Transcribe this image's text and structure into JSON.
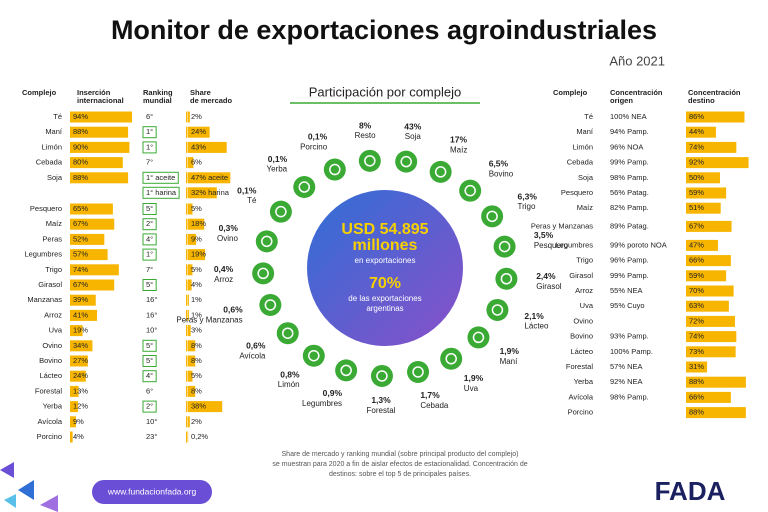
{
  "header": {
    "title": "Monitor de exportaciones agroindustriales",
    "year": "Año 2021"
  },
  "left": {
    "headers": {
      "complejo": [
        "Complejo"
      ],
      "insercion": [
        "Inserción",
        "internacional"
      ],
      "ranking": [
        "Ranking",
        "mundial"
      ],
      "share": [
        "Share",
        "de mercado"
      ]
    },
    "rows": [
      {
        "name": "Té",
        "insercion": 94,
        "insercion_label": "94%",
        "ranking": "6°",
        "share": 2,
        "share_label": "2%"
      },
      {
        "name": "Maní",
        "insercion": 88,
        "insercion_label": "88%",
        "ranking": "1°",
        "highlight": true,
        "share": 24,
        "share_label": "24%"
      },
      {
        "name": "Limón",
        "insercion": 90,
        "insercion_label": "90%",
        "ranking": "1°",
        "highlight": true,
        "share": 43,
        "share_label": "43%"
      },
      {
        "name": "Cebada",
        "insercion": 80,
        "insercion_label": "80%",
        "ranking": "7°",
        "share": 6,
        "share_label": "6%"
      },
      {
        "name": "Soja",
        "insercion": 88,
        "insercion_label": "88%",
        "ranking": "1° aceite",
        "highlight": true,
        "share": 47,
        "share_label": "47% aceite",
        "ranking_2": "1° harina",
        "share_2": 32,
        "share_2_label": "32% harina"
      },
      {
        "name": "Pesquero",
        "insercion": 65,
        "insercion_label": "65%",
        "ranking": "5°",
        "highlight": true,
        "share": 5,
        "share_label": "5%"
      },
      {
        "name": "Maíz",
        "insercion": 67,
        "insercion_label": "67%",
        "ranking": "2°",
        "highlight": true,
        "share": 18,
        "share_label": "18%"
      },
      {
        "name": "Peras",
        "insercion": 52,
        "insercion_label": "52%",
        "ranking": "4°",
        "highlight": true,
        "share": 9,
        "share_label": "9%"
      },
      {
        "name": "Legumbres",
        "insercion": 57,
        "insercion_label": "57%",
        "ranking": "1°",
        "highlight": true,
        "share": 19,
        "share_label": "19%"
      },
      {
        "name": "Trigo",
        "insercion": 74,
        "insercion_label": "74%",
        "ranking": "7°",
        "share": 5,
        "share_label": "5%"
      },
      {
        "name": "Girasol",
        "insercion": 67,
        "insercion_label": "67%",
        "ranking": "5°",
        "highlight": true,
        "share": 4,
        "share_label": "4%"
      },
      {
        "name": "Manzanas",
        "insercion": 39,
        "insercion_label": "39%",
        "ranking": "16°",
        "share": 1,
        "share_label": "1%"
      },
      {
        "name": "Arroz",
        "insercion": 41,
        "insercion_label": "41%",
        "ranking": "16°",
        "share": 1,
        "share_label": "1%"
      },
      {
        "name": "Uva",
        "insercion": 19,
        "insercion_label": "19%",
        "ranking": "10°",
        "share": 3,
        "share_label": "3%"
      },
      {
        "name": "Ovino",
        "insercion": 34,
        "insercion_label": "34%",
        "ranking": "5°",
        "highlight": true,
        "share": 8,
        "share_label": "8%"
      },
      {
        "name": "Bovino",
        "insercion": 27,
        "insercion_label": "27%",
        "ranking": "5°",
        "highlight": true,
        "share": 8,
        "share_label": "8%"
      },
      {
        "name": "Lácteo",
        "insercion": 24,
        "insercion_label": "24%",
        "ranking": "4°",
        "highlight": true,
        "share": 5,
        "share_label": "5%"
      },
      {
        "name": "Forestal",
        "insercion": 13,
        "insercion_label": "13%",
        "ranking": "6°",
        "share": 8,
        "share_label": "8%"
      },
      {
        "name": "Yerba",
        "insercion": 12,
        "insercion_label": "12%",
        "ranking": "2°",
        "highlight": true,
        "share": 38,
        "share_label": "38%"
      },
      {
        "name": "Avícola",
        "insercion": 9,
        "insercion_label": "9%",
        "ranking": "10°",
        "share": 2,
        "share_label": "2%"
      },
      {
        "name": "Porcino",
        "insercion": 4,
        "insercion_label": "4%",
        "ranking": "23°",
        "share": 0.2,
        "share_label": "0,2%"
      }
    ]
  },
  "center": {
    "title": "Participación por complejo",
    "amount": "USD 54.895",
    "unit": "millones",
    "amount_note": "en exportaciones",
    "share": "70%",
    "share_note": [
      "de las exportaciones",
      "argentinas"
    ],
    "items": [
      {
        "pct": "43%",
        "name": "Soja"
      },
      {
        "pct": "17%",
        "name": "Maíz"
      },
      {
        "pct": "6,5%",
        "name": "Bovino"
      },
      {
        "pct": "6,3%",
        "name": "Trigo"
      },
      {
        "pct": "3,5%",
        "name": "Pesquero"
      },
      {
        "pct": "2,4%",
        "name": "Girasol"
      },
      {
        "pct": "2,1%",
        "name": "Lácteo"
      },
      {
        "pct": "1,9%",
        "name": "Maní"
      },
      {
        "pct": "1,9%",
        "name": "Uva"
      },
      {
        "pct": "1,7%",
        "name": "Cebada"
      },
      {
        "pct": "1,3%",
        "name": "Forestal"
      },
      {
        "pct": "0,9%",
        "name": "Legumbres"
      },
      {
        "pct": "0,8%",
        "name": "Limón"
      },
      {
        "pct": "0,6%",
        "name": "Avícola"
      },
      {
        "pct": "0,6%",
        "name": "Peras y Manzanas"
      },
      {
        "pct": "0,4%",
        "name": "Arroz"
      },
      {
        "pct": "0,3%",
        "name": "Ovino"
      },
      {
        "pct": "0,1%",
        "name": "Té"
      },
      {
        "pct": "0,1%",
        "name": "Yerba"
      },
      {
        "pct": "0,1%",
        "name": "Porcino"
      },
      {
        "pct": "8%",
        "name": "Resto"
      }
    ]
  },
  "right": {
    "headers": {
      "complejo": [
        "Complejo"
      ],
      "origen": [
        "Concentración",
        "origen"
      ],
      "destino": [
        "Concentración",
        "destino"
      ]
    },
    "rows": [
      {
        "name": "Té",
        "origen": "100% NEA",
        "destino": 86,
        "destino_label": "86%"
      },
      {
        "name": "Maní",
        "origen": "94% Pamp.",
        "destino": 44,
        "destino_label": "44%"
      },
      {
        "name": "Limón",
        "origen": "96% NOA",
        "destino": 74,
        "destino_label": "74%"
      },
      {
        "name": "Cebada",
        "origen": "99% Pamp.",
        "destino": 92,
        "destino_label": "92%"
      },
      {
        "name": "Soja",
        "origen": "98% Pamp.",
        "destino": 50,
        "destino_label": "50%"
      },
      {
        "name": "Pesquero",
        "origen": "56% Patag.",
        "destino": 59,
        "destino_label": "59%"
      },
      {
        "name": "Maíz",
        "origen": "82% Pamp.",
        "destino": 51,
        "destino_label": "51%"
      },
      {
        "name": "Peras y Manzanas",
        "origen": "89% Patag.",
        "destino": 67,
        "destino_label": "67%"
      },
      {
        "name": "Legumbres",
        "origen": "99% poroto NOA",
        "destino": 47,
        "destino_label": "47%"
      },
      {
        "name": "Trigo",
        "origen": "96% Pamp.",
        "destino": 66,
        "destino_label": "66%"
      },
      {
        "name": "Girasol",
        "origen": "99% Pamp.",
        "destino": 59,
        "destino_label": "59%"
      },
      {
        "name": "Arroz",
        "origen": "55% NEA",
        "destino": 70,
        "destino_label": "70%"
      },
      {
        "name": "Uva",
        "origen": "95% Cuyo",
        "destino": 63,
        "destino_label": "63%"
      },
      {
        "name": "Ovino",
        "destino": 72,
        "destino_label": "72%"
      },
      {
        "name": "Bovino",
        "origen": "93% Pamp.",
        "destino": 74,
        "destino_label": "74%"
      },
      {
        "name": "Lácteo",
        "origen": "100% Pamp.",
        "destino": 73,
        "destino_label": "73%"
      },
      {
        "name": "Forestal",
        "origen": "57% NEA",
        "destino": 31,
        "destino_label": "31%"
      },
      {
        "name": "Yerba",
        "origen": "92% NEA",
        "destino": 88,
        "destino_label": "88%"
      },
      {
        "name": "Avícola",
        "origen": "98% Pamp.",
        "destino": 66,
        "destino_label": "66%"
      },
      {
        "name": "Porcino",
        "destino": 88,
        "destino_label": "88%"
      }
    ]
  },
  "footnote": [
    "Share de mercado y ranking mundial (sobre principal producto del complejo)",
    "se muestran para 2020 a fin de aislar efectos de estacionalidad. Concentración de",
    "destinos: sobre el top 5 de principales países."
  ],
  "footer": {
    "url": "www.fundacionfada.org",
    "logo": "FADA"
  }
}
